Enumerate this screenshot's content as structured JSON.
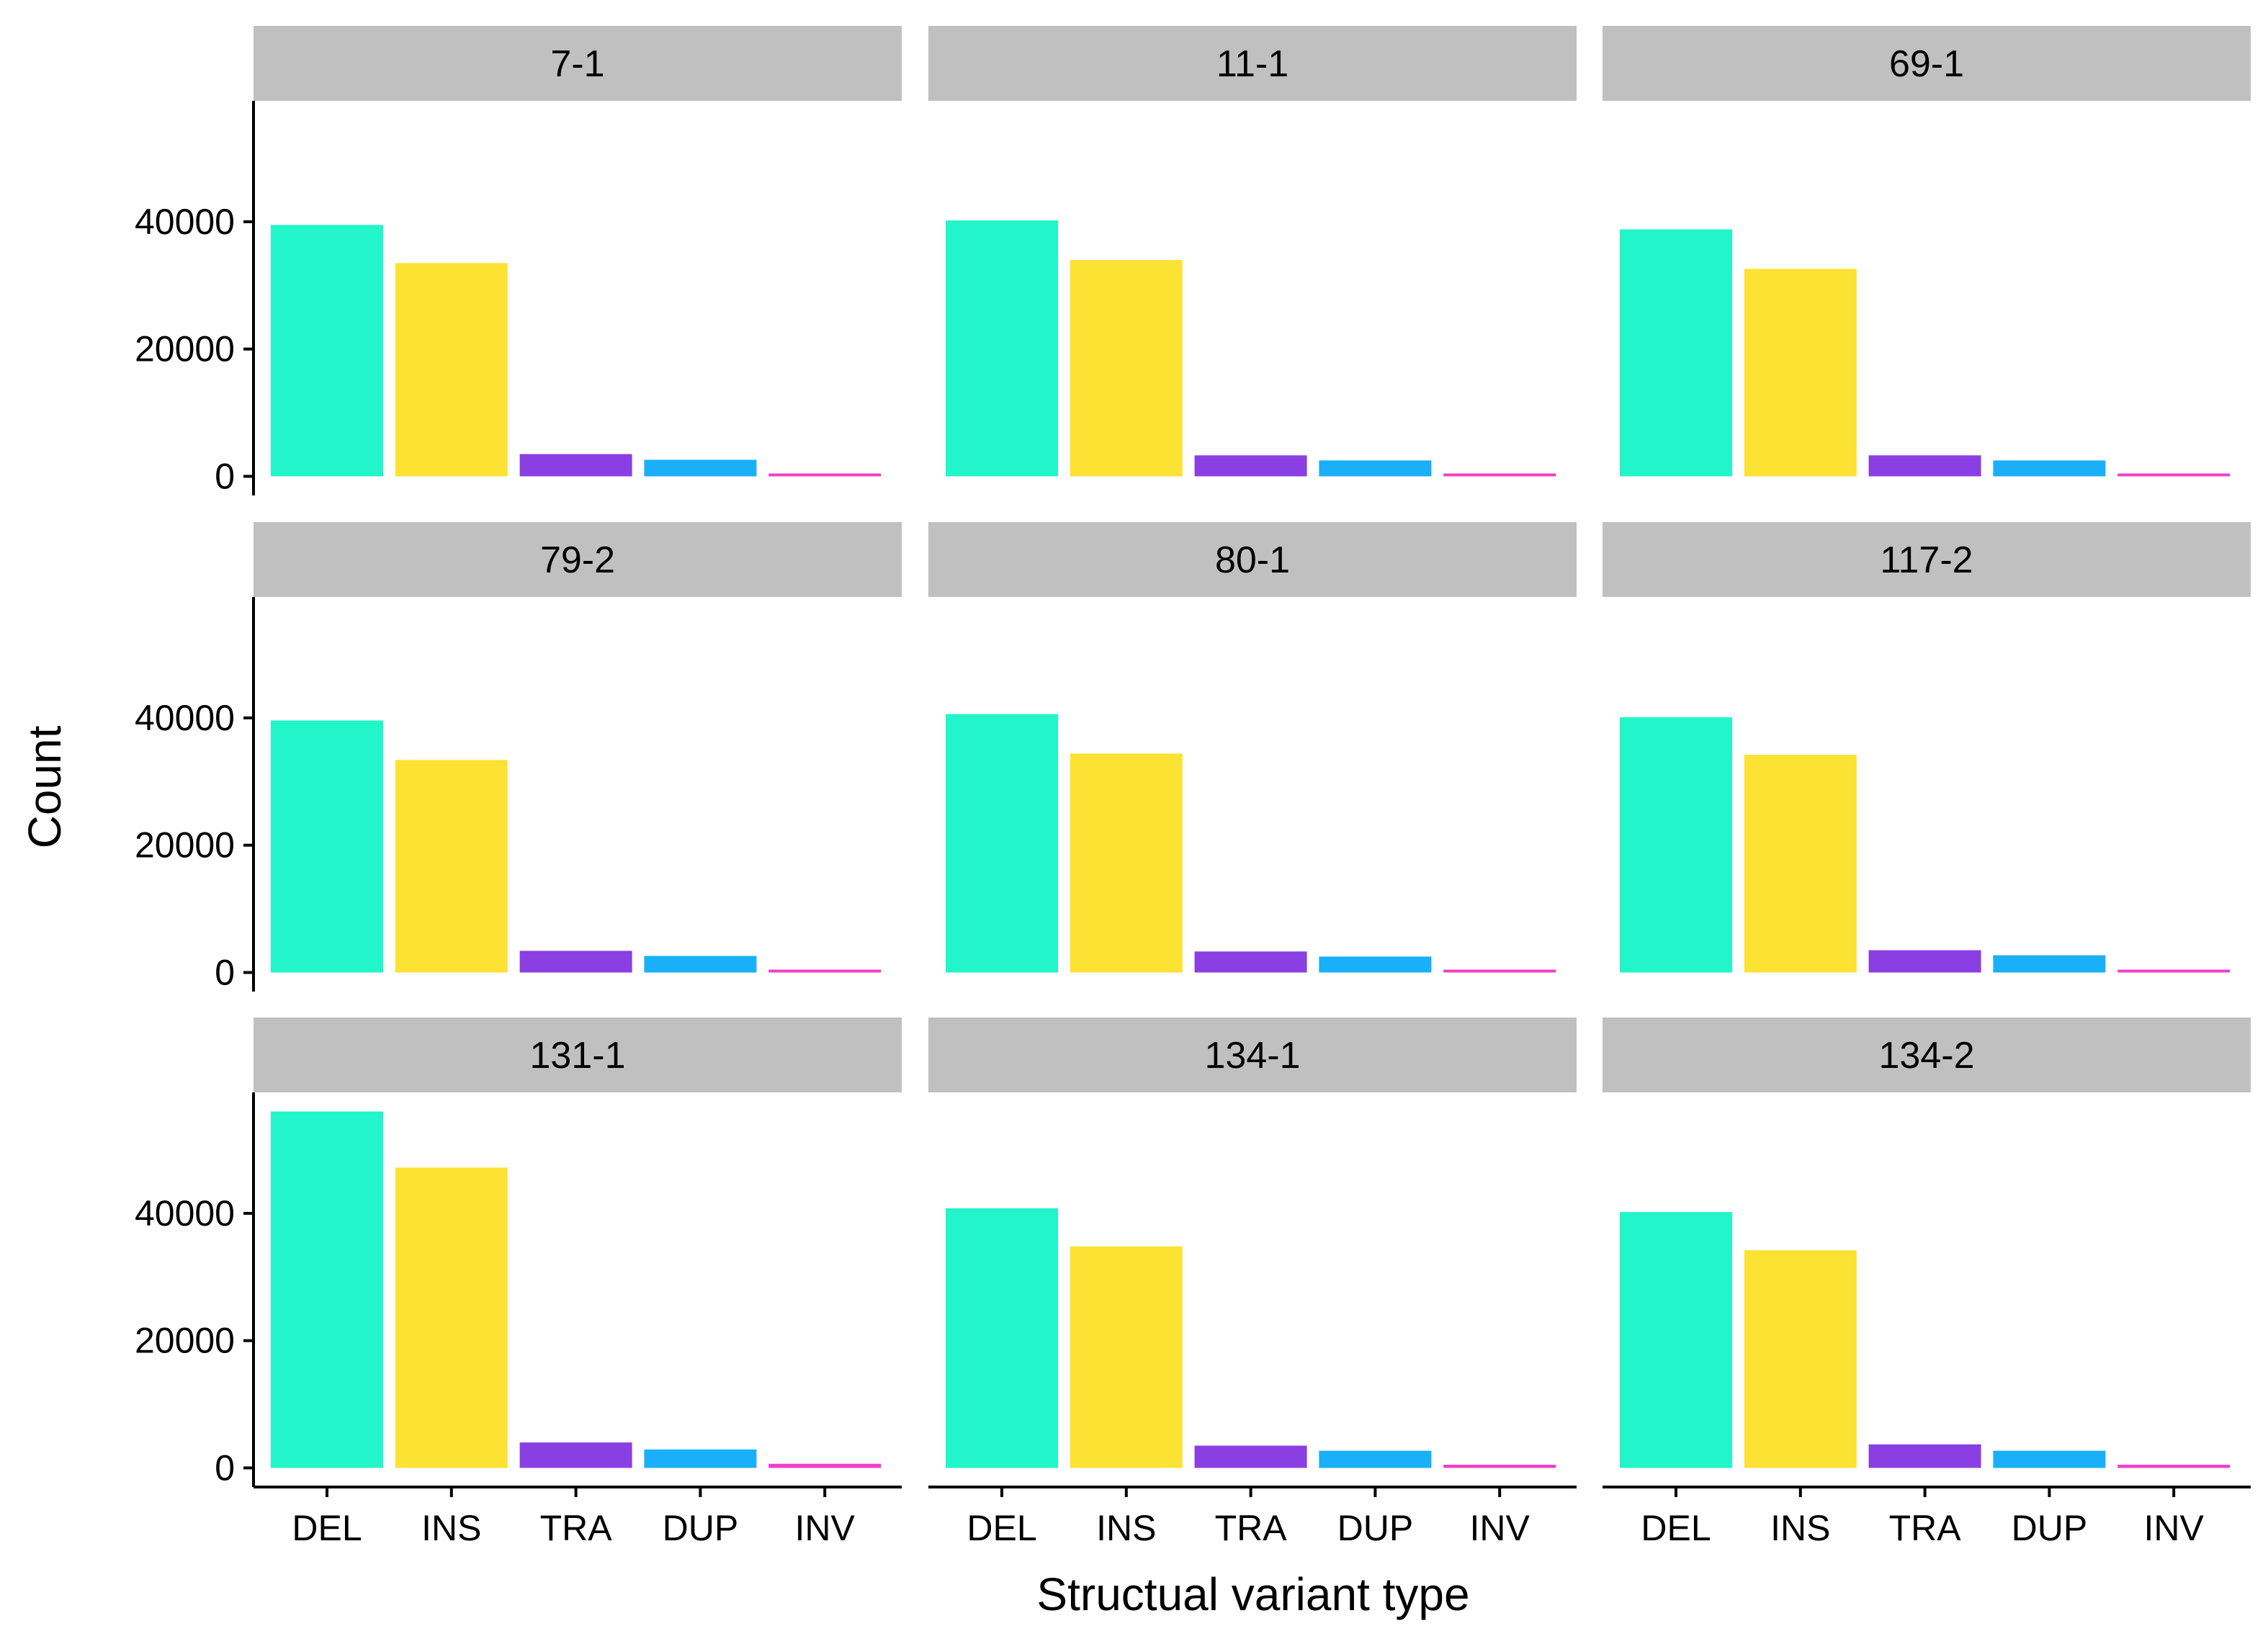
{
  "chart_data": {
    "type": "bar",
    "facet_layout": {
      "rows": 3,
      "cols": 3
    },
    "xlabel": "Structual variant type",
    "ylabel": "Count",
    "categories": [
      "DEL",
      "INS",
      "TRA",
      "DUP",
      "INV"
    ],
    "colors": {
      "DEL": "#22F5C9",
      "INS": "#FCE233",
      "TRA": "#8A3FE3",
      "DUP": "#1AAFF9",
      "INV": "#F03FC9"
    },
    "strip_color": "#C0C0C0",
    "ylim": [
      -3000,
      59000
    ],
    "yticks": [
      0,
      20000,
      40000
    ],
    "ytick_labels": [
      "0",
      "20000",
      "40000"
    ],
    "grid": false,
    "legend": "none",
    "panels": [
      {
        "label": "7-1",
        "values": [
          39500,
          33500,
          3500,
          2600,
          450
        ]
      },
      {
        "label": "11-1",
        "values": [
          40200,
          34000,
          3300,
          2500,
          450
        ]
      },
      {
        "label": "69-1",
        "values": [
          38800,
          32600,
          3300,
          2500,
          450
        ]
      },
      {
        "label": "79-2",
        "values": [
          39600,
          33400,
          3400,
          2600,
          450
        ]
      },
      {
        "label": "80-1",
        "values": [
          40600,
          34400,
          3300,
          2500,
          450
        ]
      },
      {
        "label": "117-2",
        "values": [
          40100,
          34200,
          3500,
          2700,
          450
        ]
      },
      {
        "label": "131-1",
        "values": [
          56000,
          47200,
          4000,
          2900,
          650
        ]
      },
      {
        "label": "134-1",
        "values": [
          40800,
          34800,
          3500,
          2700,
          500
        ]
      },
      {
        "label": "134-2",
        "values": [
          40200,
          34200,
          3700,
          2700,
          500
        ]
      }
    ]
  }
}
